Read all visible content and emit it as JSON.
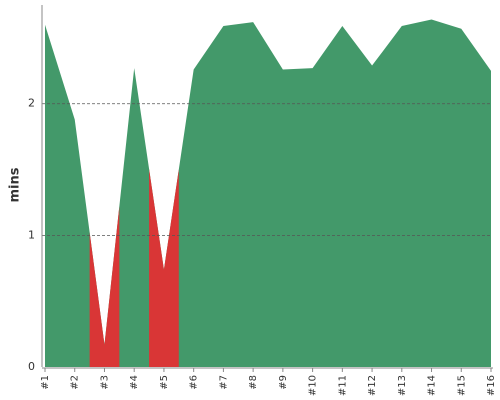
{
  "chart_data": {
    "type": "area",
    "y_label": "mins",
    "categories": [
      "#1",
      "#2",
      "#3",
      "#4",
      "#5",
      "#6",
      "#7",
      "#8",
      "#9",
      "#10",
      "#11",
      "#12",
      "#13",
      "#14",
      "#15",
      "#16"
    ],
    "values": [
      2.6,
      1.88,
      0.17,
      2.27,
      0.74,
      2.26,
      2.59,
      2.62,
      2.26,
      2.27,
      2.59,
      2.29,
      2.59,
      2.64,
      2.57,
      2.25
    ],
    "color": "#43996a",
    "threshold": 1,
    "below_color": "#d93636",
    "ylim": [
      0,
      2.75
    ],
    "yticks": [
      0,
      1,
      2
    ],
    "grid": true
  }
}
